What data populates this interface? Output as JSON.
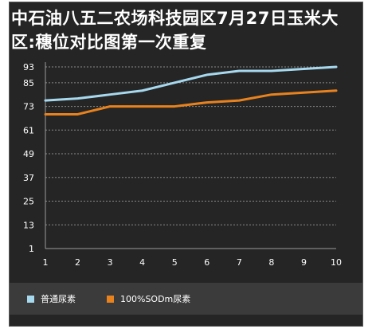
{
  "title": "中石油八五二农场科技园区7月27日玉米大区:穗位对比图第一次重复",
  "colors": {
    "background": "#252525",
    "series_1": "#a6d8ee",
    "series_2": "#e8821e",
    "grid": "#8a8a8a",
    "text": "#ffffff"
  },
  "chart_data": {
    "type": "line",
    "title": "中石油八五二农场科技园区7月27日玉米大区:穗位对比图第一次重复",
    "xlabel": "",
    "ylabel": "",
    "x": [
      1,
      2,
      3,
      4,
      5,
      6,
      7,
      8,
      9,
      10
    ],
    "y_ticks": [
      1,
      13,
      25,
      37,
      49,
      61,
      73,
      85,
      93
    ],
    "ylim": [
      1,
      93
    ],
    "xlim": [
      1,
      10
    ],
    "grid": "horizontal dashed",
    "legend_position": "bottom",
    "series": [
      {
        "name": "普通尿素",
        "color": "#a6d8ee",
        "values": [
          76,
          77,
          79,
          81,
          85,
          89,
          91,
          91,
          92,
          93
        ]
      },
      {
        "name": "100%SODm尿素",
        "color": "#e8821e",
        "values": [
          69,
          69,
          73,
          73,
          73,
          75,
          76,
          79,
          80,
          81
        ]
      }
    ]
  }
}
